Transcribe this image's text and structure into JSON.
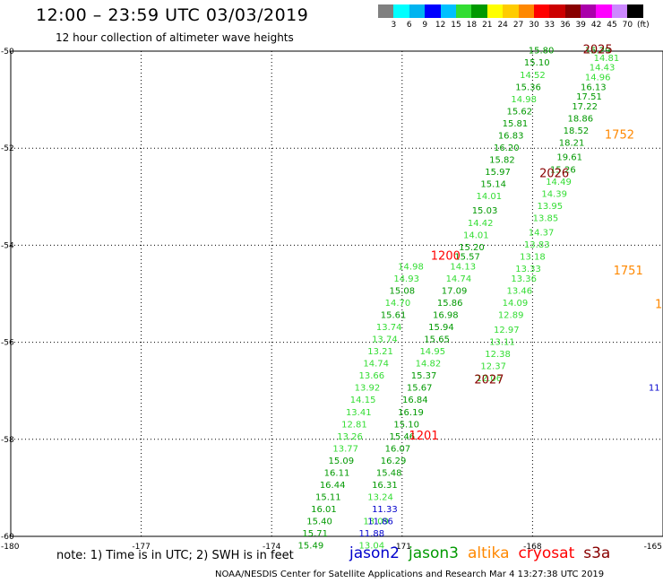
{
  "header": {
    "title": "12:00 – 23:59 UTC 03/03/2019",
    "subtitle": "12 hour collection of altimeter wave heights"
  },
  "legend": {
    "colors": [
      "#808080",
      "#00ffff",
      "#00b4f0",
      "#0000ff",
      "#00c0ff",
      "#33dd33",
      "#009900",
      "#ffff00",
      "#ffcc00",
      "#ff8800",
      "#ff0000",
      "#cc0000",
      "#880000",
      "#aa00aa",
      "#ff00ff",
      "#cc88ff",
      "#000000"
    ],
    "labels": [
      "3",
      "6",
      "9",
      "12",
      "15",
      "18",
      "21",
      "24",
      "27",
      "30",
      "33",
      "36",
      "39",
      "42",
      "45",
      "70",
      "(ft)"
    ]
  },
  "axes": {
    "lat_labels": [
      "-50",
      "-52",
      "-54",
      "-56",
      "-58",
      "-60"
    ],
    "lon_labels": [
      "-180",
      "-177",
      "-174",
      "-171",
      "-168",
      "-165"
    ]
  },
  "chart_data": {
    "type": "scatter",
    "x": "longitude (deg)",
    "y": "latitude (deg)",
    "xlim": [
      -180,
      -165
    ],
    "ylim": [
      -60,
      -50
    ],
    "grid": true,
    "value_unit": "ft",
    "series": [
      {
        "name": "jason3",
        "points": [
          {
            "x": -166.5,
            "y": -50.05,
            "v": "15.29"
          },
          {
            "x": -166.3,
            "y": -50.2,
            "v": "14.81"
          },
          {
            "x": -166.4,
            "y": -50.4,
            "v": "14.43"
          },
          {
            "x": -166.5,
            "y": -50.6,
            "v": "14.96"
          },
          {
            "x": -166.6,
            "y": -50.8,
            "v": "16.13"
          },
          {
            "x": -166.7,
            "y": -51.0,
            "v": "17.51"
          },
          {
            "x": -166.8,
            "y": -51.2,
            "v": "17.22"
          },
          {
            "x": -166.9,
            "y": -51.45,
            "v": "18.86"
          },
          {
            "x": -167.0,
            "y": -51.7,
            "v": "18.52"
          },
          {
            "x": -167.1,
            "y": -51.95,
            "v": "18.21"
          },
          {
            "x": -167.15,
            "y": -52.25,
            "v": "19.61"
          },
          {
            "x": -167.3,
            "y": -52.5,
            "v": "15.26"
          },
          {
            "x": -167.4,
            "y": -52.75,
            "v": "14.49"
          },
          {
            "x": -167.5,
            "y": -53.0,
            "v": "14.39"
          },
          {
            "x": -167.6,
            "y": -53.25,
            "v": "13.95"
          },
          {
            "x": -167.7,
            "y": -53.5,
            "v": "13.85"
          },
          {
            "x": -167.8,
            "y": -53.8,
            "v": "14.37"
          },
          {
            "x": -167.9,
            "y": -54.05,
            "v": "13.83"
          },
          {
            "x": -168.0,
            "y": -54.3,
            "v": "13.18"
          },
          {
            "x": -168.1,
            "y": -54.55,
            "v": "13.33"
          },
          {
            "x": -168.2,
            "y": -54.75,
            "v": "13.36"
          },
          {
            "x": -168.3,
            "y": -55.0,
            "v": "13.46"
          },
          {
            "x": -168.4,
            "y": -55.25,
            "v": "14.09"
          },
          {
            "x": -168.5,
            "y": -55.5,
            "v": "12.89"
          },
          {
            "x": -168.6,
            "y": -55.8,
            "v": "12.97"
          },
          {
            "x": -168.7,
            "y": -56.05,
            "v": "13.11"
          },
          {
            "x": -168.8,
            "y": -56.3,
            "v": "12.38"
          },
          {
            "x": -168.9,
            "y": -56.55,
            "v": "12.37"
          },
          {
            "x": -169.0,
            "y": -56.8,
            "v": "12.06"
          },
          {
            "x": -167.8,
            "y": -50.05,
            "v": "15.80"
          },
          {
            "x": -167.9,
            "y": -50.3,
            "v": "15.10"
          },
          {
            "x": -168.0,
            "y": -50.55,
            "v": "14.52"
          },
          {
            "x": -168.1,
            "y": -50.8,
            "v": "15.36"
          },
          {
            "x": -168.2,
            "y": -51.05,
            "v": "14.98"
          },
          {
            "x": -168.3,
            "y": -51.3,
            "v": "15.62"
          },
          {
            "x": -168.4,
            "y": -51.55,
            "v": "15.81"
          },
          {
            "x": -168.5,
            "y": -51.8,
            "v": "16.83"
          },
          {
            "x": -168.6,
            "y": -52.05,
            "v": "16.20"
          },
          {
            "x": -168.7,
            "y": -52.3,
            "v": "15.82"
          },
          {
            "x": -168.8,
            "y": -52.55,
            "v": "15.97"
          },
          {
            "x": -168.9,
            "y": -52.8,
            "v": "15.14"
          },
          {
            "x": -169.0,
            "y": -53.05,
            "v": "14.01"
          },
          {
            "x": -169.1,
            "y": -53.35,
            "v": "15.03"
          },
          {
            "x": -169.2,
            "y": -53.6,
            "v": "14.42"
          },
          {
            "x": -169.3,
            "y": -53.85,
            "v": "14.01"
          },
          {
            "x": -169.4,
            "y": -54.1,
            "v": "15.20"
          },
          {
            "x": -169.5,
            "y": -54.3,
            "v": "15.57"
          },
          {
            "x": -169.6,
            "y": -54.5,
            "v": "14.13"
          },
          {
            "x": -169.7,
            "y": -54.75,
            "v": "14.74"
          },
          {
            "x": -169.8,
            "y": -55.0,
            "v": "17.09"
          },
          {
            "x": -169.9,
            "y": -55.25,
            "v": "15.86"
          },
          {
            "x": -170.0,
            "y": -55.5,
            "v": "16.98"
          },
          {
            "x": -170.1,
            "y": -55.75,
            "v": "15.94"
          },
          {
            "x": -170.2,
            "y": -56.0,
            "v": "15.65"
          },
          {
            "x": -170.3,
            "y": -56.25,
            "v": "14.95"
          },
          {
            "x": -170.4,
            "y": -56.5,
            "v": "14.82"
          },
          {
            "x": -170.5,
            "y": -56.75,
            "v": "15.37"
          },
          {
            "x": -170.6,
            "y": -57.0,
            "v": "15.67"
          },
          {
            "x": -170.7,
            "y": -57.25,
            "v": "16.84"
          },
          {
            "x": -170.8,
            "y": -57.5,
            "v": "16.19"
          },
          {
            "x": -170.9,
            "y": -57.75,
            "v": "15.10"
          },
          {
            "x": -171.0,
            "y": -58.0,
            "v": "15.46"
          },
          {
            "x": -171.1,
            "y": -58.25,
            "v": "16.07"
          },
          {
            "x": -171.2,
            "y": -58.5,
            "v": "16.29"
          },
          {
            "x": -171.3,
            "y": -58.75,
            "v": "15.48"
          },
          {
            "x": -171.4,
            "y": -59.0,
            "v": "16.31"
          },
          {
            "x": -170.8,
            "y": -54.5,
            "v": "14.98"
          },
          {
            "x": -170.9,
            "y": -54.75,
            "v": "14.93"
          },
          {
            "x": -171.0,
            "y": -55.0,
            "v": "15.08"
          },
          {
            "x": -171.1,
            "y": -55.25,
            "v": "14.70"
          },
          {
            "x": -171.2,
            "y": -55.5,
            "v": "15.61"
          },
          {
            "x": -171.3,
            "y": -55.75,
            "v": "13.74"
          },
          {
            "x": -171.4,
            "y": -56.0,
            "v": "13.74"
          },
          {
            "x": -171.5,
            "y": -56.25,
            "v": "13.21"
          },
          {
            "x": -171.6,
            "y": -56.5,
            "v": "14.74"
          },
          {
            "x": -171.7,
            "y": -56.75,
            "v": "13.66"
          },
          {
            "x": -171.8,
            "y": -57.0,
            "v": "13.92"
          },
          {
            "x": -171.9,
            "y": -57.25,
            "v": "14.15"
          },
          {
            "x": -172.0,
            "y": -57.5,
            "v": "13.41"
          },
          {
            "x": -172.1,
            "y": -57.75,
            "v": "12.81"
          },
          {
            "x": -172.2,
            "y": -58.0,
            "v": "13.26"
          },
          {
            "x": -172.3,
            "y": -58.25,
            "v": "13.77"
          },
          {
            "x": -172.4,
            "y": -58.5,
            "v": "15.09"
          },
          {
            "x": -172.5,
            "y": -58.75,
            "v": "16.11"
          },
          {
            "x": -172.6,
            "y": -59.0,
            "v": "16.44"
          },
          {
            "x": -172.7,
            "y": -59.25,
            "v": "15.11"
          },
          {
            "x": -172.8,
            "y": -59.5,
            "v": "16.01"
          },
          {
            "x": -172.9,
            "y": -59.75,
            "v": "15.40"
          },
          {
            "x": -173.0,
            "y": -60.0,
            "v": "15.71"
          },
          {
            "x": -173.1,
            "y": -60.25,
            "v": "15.49"
          },
          {
            "x": -171.5,
            "y": -59.25,
            "v": "13.24"
          },
          {
            "x": -171.6,
            "y": -59.75,
            "v": "13.09"
          },
          {
            "x": -171.7,
            "y": -60.25,
            "v": "13.04"
          }
        ]
      },
      {
        "name": "jason2",
        "points": [
          {
            "x": -171.4,
            "y": -59.5,
            "v": "11.33"
          },
          {
            "x": -171.5,
            "y": -59.75,
            "v": "11.86"
          },
          {
            "x": -171.7,
            "y": -60.0,
            "v": "11.88"
          },
          {
            "x": -165.2,
            "y": -57.0,
            "v": "11"
          }
        ]
      },
      {
        "name": "cryosat",
        "points": [
          {
            "x": -170.0,
            "y": -54.3,
            "v": "1200"
          },
          {
            "x": -170.5,
            "y": -58.0,
            "v": "1201"
          }
        ]
      },
      {
        "name": "s3a",
        "points": [
          {
            "x": -166.5,
            "y": -50.05,
            "v": "2025"
          },
          {
            "x": -167.5,
            "y": -52.6,
            "v": "2026"
          },
          {
            "x": -169.0,
            "y": -56.85,
            "v": "2027"
          }
        ]
      },
      {
        "name": "altika",
        "points": [
          {
            "x": -166.0,
            "y": -51.8,
            "v": "1752"
          },
          {
            "x": -165.8,
            "y": -54.6,
            "v": "1751"
          },
          {
            "x": -165.1,
            "y": -55.3,
            "v": "1"
          }
        ]
      }
    ]
  },
  "satellites": [
    {
      "name": "jason2",
      "color": "#0000cc"
    },
    {
      "name": "jason3",
      "color": "#009900"
    },
    {
      "name": "altika",
      "color": "#ff8800"
    },
    {
      "name": "cryosat",
      "color": "#ff0000"
    },
    {
      "name": "s3a",
      "color": "#880000"
    }
  ],
  "note": "note: 1) Time is in UTC; 2) SWH is in feet",
  "footer": "NOAA/NESDIS Center for Satellite Applications and Research   Mar  4 13:27:38 UTC 2019"
}
